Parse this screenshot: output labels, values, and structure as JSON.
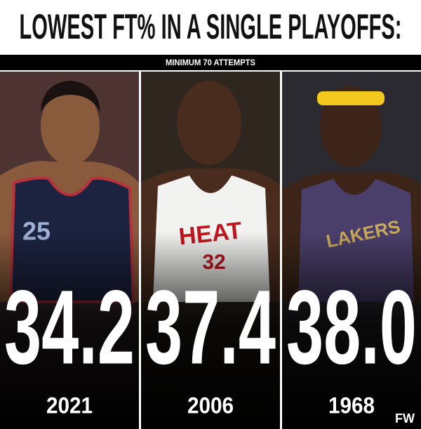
{
  "header": {
    "title": "LOWEST FT% IN A SINGLE PLAYOFFS:",
    "subtitle": "MINIMUM 70 ATTEMPTS"
  },
  "panels": [
    {
      "value": "34.2",
      "year": "2021",
      "jersey_texts": [
        "25"
      ]
    },
    {
      "value": "37.4",
      "year": "2006",
      "jersey_texts": [
        "HEAT",
        "32"
      ]
    },
    {
      "value": "38.0",
      "year": "1968",
      "jersey_texts": [
        "LAKERS"
      ]
    }
  ],
  "watermark": "FW"
}
